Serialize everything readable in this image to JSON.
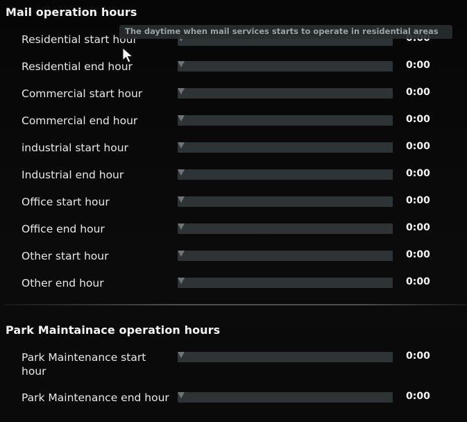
{
  "sections": {
    "mail": {
      "title": "Mail operation hours",
      "rows": [
        {
          "label": "Residential start hour",
          "value": "0:00"
        },
        {
          "label": "Residential end hour",
          "value": "0:00"
        },
        {
          "label": "Commercial start hour",
          "value": "0:00"
        },
        {
          "label": "Commercial end hour",
          "value": "0:00"
        },
        {
          "label": "industrial start hour",
          "value": "0:00"
        },
        {
          "label": "Industrial end hour",
          "value": "0:00"
        },
        {
          "label": "Office start hour",
          "value": "0:00"
        },
        {
          "label": "Office end hour",
          "value": "0:00"
        },
        {
          "label": "Other start hour",
          "value": "0:00"
        },
        {
          "label": "Other end hour",
          "value": "0:00"
        }
      ]
    },
    "park": {
      "title": "Park Maintainace operation hours",
      "rows": [
        {
          "label": "Park Maintenance start hour",
          "value": "0:00"
        },
        {
          "label": "Park Maintenance end hour",
          "value": "0:00"
        }
      ]
    }
  },
  "tooltip": {
    "text": "The daytime when mail services starts to operate in residential areas"
  },
  "colors": {
    "background": "#000000",
    "slider_track": "#2e3435",
    "slider_handle": "#6d7475",
    "text": "#e8e8e8",
    "tooltip_text": "#9aa2a6"
  },
  "slider_level": 0
}
